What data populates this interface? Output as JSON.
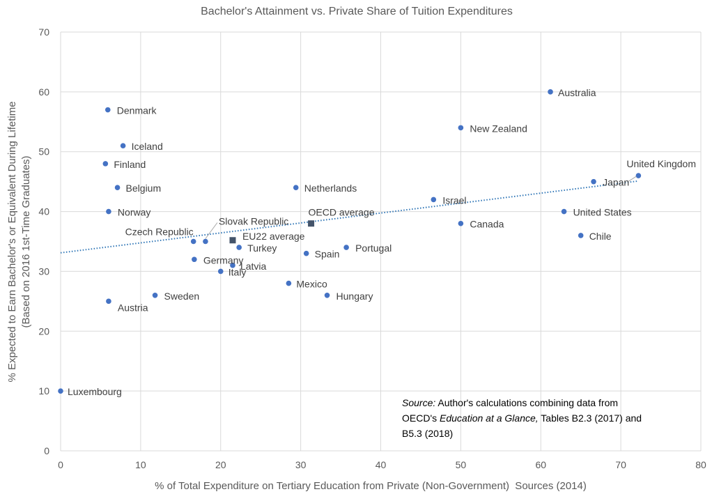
{
  "chart_data": {
    "type": "scatter",
    "title": "Bachelor's Attainment vs. Private Share of Tuition Expenditures",
    "xlabel": "% of Total Expenditure on Tertiary Education from Private (Non-Government)  Sources (2014)",
    "ylabel_line1": "% Expected to Earn Bachelor's or Equivalent During Lifetime",
    "ylabel_line2": "(Based on 2016 1st-Time Graduates)",
    "xlim": [
      0,
      80
    ],
    "ylim": [
      0,
      70
    ],
    "x_ticks": [
      0,
      10,
      20,
      30,
      40,
      50,
      60,
      70,
      80
    ],
    "y_ticks": [
      0,
      10,
      20,
      30,
      40,
      50,
      60,
      70
    ],
    "grid": true,
    "points": [
      {
        "label": "Australia",
        "x": 61.2,
        "y": 60
      },
      {
        "label": "Denmark",
        "x": 5.9,
        "y": 57
      },
      {
        "label": "New Zealand",
        "x": 50,
        "y": 54
      },
      {
        "label": "Iceland",
        "x": 7.8,
        "y": 51
      },
      {
        "label": "Finland",
        "x": 5.6,
        "y": 48
      },
      {
        "label": "United Kingdom",
        "x": 72.2,
        "y": 46
      },
      {
        "label": "Japan",
        "x": 66.6,
        "y": 45
      },
      {
        "label": "Belgium",
        "x": 7.1,
        "y": 44
      },
      {
        "label": "Netherlands",
        "x": 29.4,
        "y": 44
      },
      {
        "label": "Israel",
        "x": 46.6,
        "y": 42
      },
      {
        "label": "Norway",
        "x": 6,
        "y": 40
      },
      {
        "label": "United States",
        "x": 62.9,
        "y": 40
      },
      {
        "label": "Canada",
        "x": 50,
        "y": 38
      },
      {
        "label": "Chile",
        "x": 65,
        "y": 36
      },
      {
        "label": "Czech Republic",
        "x": 16.6,
        "y": 35
      },
      {
        "label": "Slovak Republic",
        "x": 18.1,
        "y": 35
      },
      {
        "label": "Turkey",
        "x": 22.3,
        "y": 34
      },
      {
        "label": "Portugal",
        "x": 35.7,
        "y": 34
      },
      {
        "label": "Spain",
        "x": 30.7,
        "y": 33
      },
      {
        "label": "Germany",
        "x": 16.7,
        "y": 32
      },
      {
        "label": "Latvia",
        "x": 21.5,
        "y": 31
      },
      {
        "label": "Italy",
        "x": 20,
        "y": 30
      },
      {
        "label": "Mexico",
        "x": 28.5,
        "y": 28
      },
      {
        "label": "Sweden",
        "x": 11.8,
        "y": 26
      },
      {
        "label": "Hungary",
        "x": 33.3,
        "y": 26
      },
      {
        "label": "Austria",
        "x": 6,
        "y": 25
      },
      {
        "label": "Luxembourg",
        "x": 0,
        "y": 10
      }
    ],
    "averages": [
      {
        "label": "OECD average",
        "x": 31.3,
        "y": 38
      },
      {
        "label": "EU22 average",
        "x": 21.5,
        "y": 35.2
      }
    ],
    "trendline": {
      "style": "dotted",
      "x": [
        0,
        72.2
      ],
      "y": [
        33.1,
        45.1
      ]
    },
    "colors": {
      "point": "#4472c4",
      "average": "#44546a",
      "trend": "#2e75b6"
    },
    "source_note": {
      "line1_italic": "Source:",
      "line1_rest": " Author's calculations combining data from",
      "line2_plain1": "OECD's ",
      "line2_italic": "Education at a Glance,",
      "line2_plain2": " Tables B2.3 (2017) and",
      "line3": "B5.3 (2018)"
    }
  }
}
